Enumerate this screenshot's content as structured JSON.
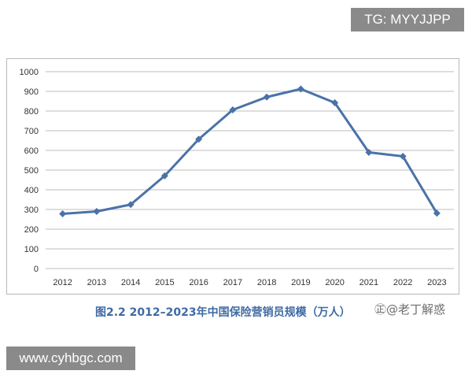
{
  "watermark_top": "TG: MYYJJPP",
  "watermark_bottom": "www.cyhbgc.com",
  "caption": "图2.2 2012–2023年中国保险营销员规模（万人）",
  "credit": "㊣@老丁解惑",
  "colors": {
    "series": "#4a72a8",
    "grid": "#bcbcbc",
    "caption": "#3f6aa3"
  },
  "chart_data": {
    "type": "line",
    "title": "",
    "xlabel": "",
    "ylabel": "",
    "ylim": [
      0,
      1000
    ],
    "yticks": [
      0,
      100,
      200,
      300,
      400,
      500,
      600,
      700,
      800,
      900,
      1000
    ],
    "grid": true,
    "categories": [
      "2012",
      "2013",
      "2014",
      "2015",
      "2016",
      "2017",
      "2018",
      "2019",
      "2020",
      "2021",
      "2022",
      "2023"
    ],
    "series": [
      {
        "values": [
          278,
          290,
          325,
          471,
          657,
          806,
          871,
          912,
          842,
          590,
          570,
          281
        ]
      }
    ]
  }
}
